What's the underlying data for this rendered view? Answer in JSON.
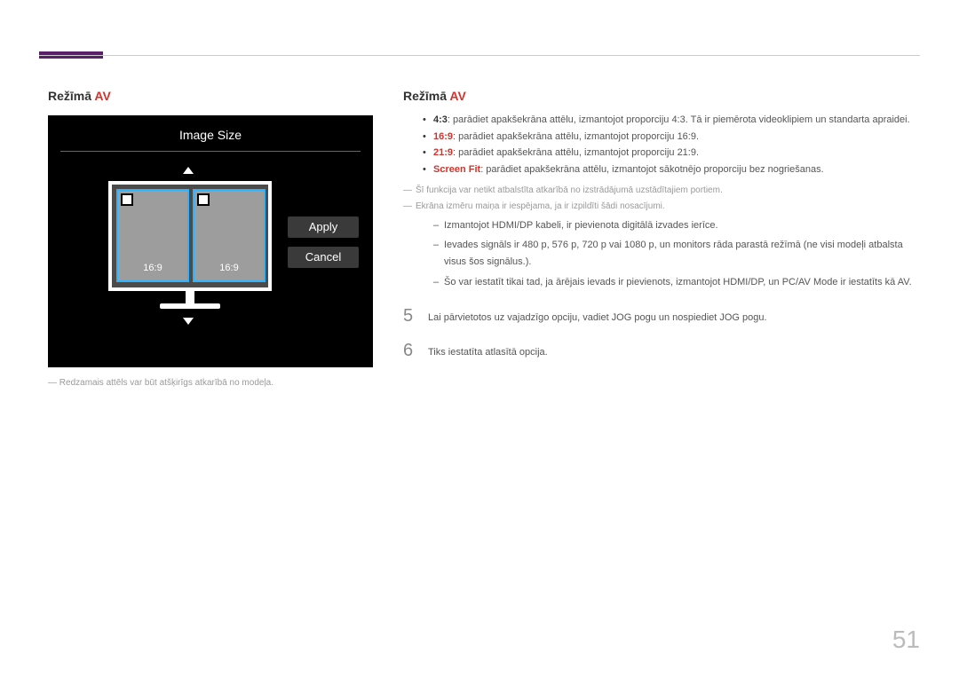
{
  "page_number": "51",
  "left_section": {
    "title_prefix": "Režīmā ",
    "title_highlight": "AV",
    "note": "Redzamais attēls var būt atšķirīgs atkarībā no modeļa."
  },
  "osd": {
    "title": "Image Size",
    "ratio1": "16:9",
    "ratio2": "16:9",
    "apply": "Apply",
    "cancel": "Cancel"
  },
  "right_section": {
    "title_prefix": "Režīmā ",
    "title_highlight": "AV",
    "bullets": [
      {
        "term": "4:3",
        "text": ": parādiet apakšekrāna attēlu, izmantojot proporciju 4:3. Tā ir piemērota videoklipiem un standarta apraidei."
      },
      {
        "term": "16:9",
        "text": ": parādiet apakšekrāna attēlu, izmantojot proporciju 16:9."
      },
      {
        "term": "21:9",
        "text": ": parādiet apakšekrāna attēlu, izmantojot proporciju 21:9."
      },
      {
        "term": "Screen Fit",
        "text": ": parādiet apakšekrāna attēlu, izmantojot sākotnējo proporciju bez nogriešanas."
      }
    ],
    "dash_notes": [
      "Šī funkcija var netikt atbalstīta atkarībā no izstrādājumā uzstādītajiem portiem.",
      "Ekrāna izmēru maiņa ir iespējama, ja ir izpildīti šādi nosacījumi."
    ],
    "sub_dashes": [
      {
        "text": "Izmantojot HDMI/DP kabeli, ir pievienota digitālā izvades ierīce."
      },
      {
        "text": "Ievades signāls ir 480 p, 576 p, 720 p vai 1080 p, un monitors rāda parastā režīmā (ne visi modeļi atbalsta visus šos signālus.)."
      },
      {
        "prefix": "Šo var iestatīt tikai tad, ja ārējais ievads ir pievienots, izmantojot HDMI/DP, un ",
        "red1": "PC/AV Mode",
        "mid": " ir iestatīts kā ",
        "red2": "AV",
        "suffix": "."
      }
    ],
    "steps": [
      {
        "num": "5",
        "text": "Lai pārvietotos uz vajadzīgo opciju, vadiet JOG pogu un nospiediet JOG pogu."
      },
      {
        "num": "6",
        "text": "Tiks iestatīta atlasītā opcija."
      }
    ]
  }
}
